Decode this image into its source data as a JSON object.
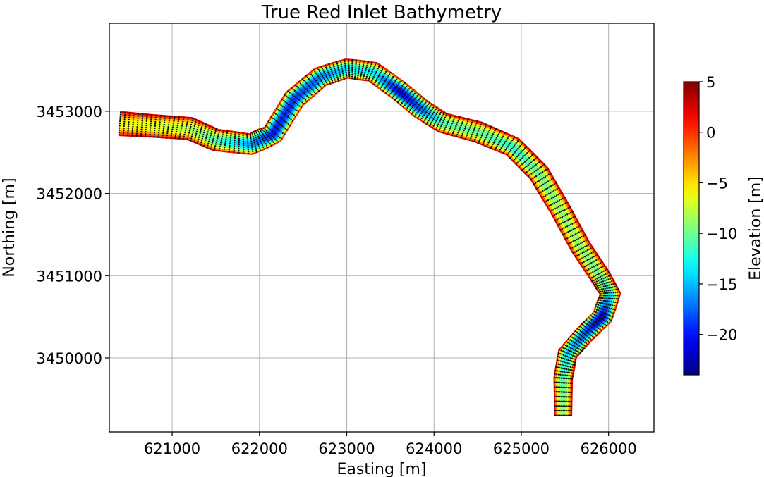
{
  "chart_data": {
    "type": "heatmap",
    "title": "True Red Inlet Bathymetry",
    "xlabel": "Easting [m]",
    "ylabel": "Northing [m]",
    "xlim": [
      620280,
      626520
    ],
    "ylim": [
      3449100,
      3454070
    ],
    "x_ticks": [
      621000,
      622000,
      623000,
      624000,
      625000,
      626000
    ],
    "y_ticks": [
      3450000,
      3451000,
      3452000,
      3453000
    ],
    "grid": true,
    "colorbar": {
      "label": "Elevation [m]",
      "colormap": "jet",
      "range": [
        -24,
        5
      ],
      "ticks": [
        5,
        0,
        -5,
        -10,
        -15,
        -20
      ],
      "tick_labels": [
        "5",
        "0",
        "−5",
        "−10",
        "−15",
        "−20"
      ]
    },
    "channel_centerline": [
      [
        620400,
        3452850
      ],
      [
        620800,
        3452820
      ],
      [
        621200,
        3452790
      ],
      [
        621500,
        3452650
      ],
      [
        621900,
        3452600
      ],
      [
        622150,
        3452720
      ],
      [
        622400,
        3453150
      ],
      [
        622700,
        3453420
      ],
      [
        623000,
        3453520
      ],
      [
        623300,
        3453480
      ],
      [
        623600,
        3453250
      ],
      [
        623850,
        3453030
      ],
      [
        624100,
        3452860
      ],
      [
        624500,
        3452750
      ],
      [
        624900,
        3452570
      ],
      [
        625200,
        3452250
      ],
      [
        625450,
        3451800
      ],
      [
        625680,
        3451350
      ],
      [
        625900,
        3451000
      ],
      [
        626020,
        3450780
      ],
      [
        625930,
        3450500
      ],
      [
        625720,
        3450280
      ],
      [
        625530,
        3450050
      ],
      [
        625480,
        3449750
      ],
      [
        625480,
        3449300
      ]
    ],
    "channel_width_m": [
      300,
      280,
      280,
      270,
      260,
      260,
      260,
      250,
      240,
      250,
      250,
      250,
      250,
      260,
      250,
      250,
      240,
      240,
      240,
      240,
      240,
      230,
      230,
      220,
      200
    ],
    "thalweg_depth_m": [
      -6,
      -7,
      -8,
      -11,
      -16,
      -20,
      -19,
      -17,
      -14,
      -13,
      -21,
      -18,
      -11,
      -10,
      -12,
      -10,
      -9,
      -9,
      -10,
      -13,
      -22,
      -18,
      -14,
      -11,
      -9
    ],
    "bank_elevation_m": 5,
    "mesh_nodes": "black point markers on a regular curvilinear grid covering the channel"
  }
}
